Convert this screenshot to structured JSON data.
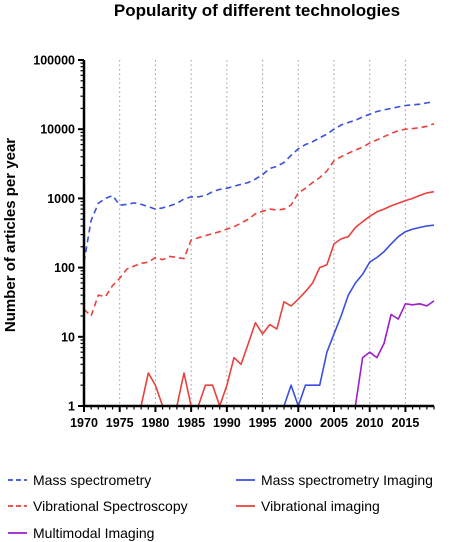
{
  "chart_data": {
    "type": "line",
    "title": "Popularity of different technologies",
    "xlabel": "",
    "ylabel": "Number of articles per year",
    "yscale": "log",
    "xlim": [
      1970,
      2019
    ],
    "ylim": [
      1,
      100000
    ],
    "x_ticks": [
      1970,
      1975,
      1980,
      1985,
      1990,
      1995,
      2000,
      2005,
      2010,
      2015
    ],
    "x_tick_labels": [
      "1970",
      "1975",
      "1980",
      "1985",
      "1990",
      "1995",
      "2000",
      "2005",
      "2010",
      "2015"
    ],
    "y_ticks": [
      1,
      10,
      100,
      1000,
      10000,
      100000
    ],
    "y_tick_labels": [
      "1",
      "10",
      "100",
      "1000",
      "10000",
      "100000"
    ],
    "grid": "vertical dotted",
    "legend_position": "bottom",
    "series": [
      {
        "name": "Mass spectrometry",
        "color": "#3b4fe0",
        "dash": "dashed",
        "points": [
          [
            1970,
            120
          ],
          [
            1971,
            480
          ],
          [
            1972,
            850
          ],
          [
            1973,
            1000
          ],
          [
            1974,
            1100
          ],
          [
            1975,
            800
          ],
          [
            1976,
            820
          ],
          [
            1977,
            860
          ],
          [
            1978,
            820
          ],
          [
            1979,
            760
          ],
          [
            1980,
            700
          ],
          [
            1981,
            730
          ],
          [
            1982,
            780
          ],
          [
            1983,
            850
          ],
          [
            1984,
            980
          ],
          [
            1985,
            1050
          ],
          [
            1986,
            1050
          ],
          [
            1987,
            1100
          ],
          [
            1988,
            1250
          ],
          [
            1989,
            1350
          ],
          [
            1990,
            1400
          ],
          [
            1991,
            1500
          ],
          [
            1992,
            1600
          ],
          [
            1993,
            1700
          ],
          [
            1994,
            1900
          ],
          [
            1995,
            2200
          ],
          [
            1996,
            2700
          ],
          [
            1997,
            2900
          ],
          [
            1998,
            3300
          ],
          [
            1999,
            4200
          ],
          [
            2000,
            5200
          ],
          [
            2001,
            6000
          ],
          [
            2002,
            6600
          ],
          [
            2003,
            7500
          ],
          [
            2004,
            8500
          ],
          [
            2005,
            10000
          ],
          [
            2006,
            11500
          ],
          [
            2007,
            12500
          ],
          [
            2008,
            13500
          ],
          [
            2009,
            15000
          ],
          [
            2010,
            16500
          ],
          [
            2011,
            18000
          ],
          [
            2012,
            19000
          ],
          [
            2013,
            20000
          ],
          [
            2014,
            21000
          ],
          [
            2015,
            22000
          ],
          [
            2016,
            22500
          ],
          [
            2017,
            23000
          ],
          [
            2018,
            24000
          ],
          [
            2019,
            25000
          ]
        ]
      },
      {
        "name": "Vibrational Spectroscopy",
        "color": "#e8413c",
        "dash": "dashed",
        "points": [
          [
            1970,
            25
          ],
          [
            1971,
            20
          ],
          [
            1972,
            40
          ],
          [
            1973,
            38
          ],
          [
            1974,
            55
          ],
          [
            1975,
            70
          ],
          [
            1976,
            95
          ],
          [
            1977,
            105
          ],
          [
            1978,
            115
          ],
          [
            1979,
            120
          ],
          [
            1980,
            140
          ],
          [
            1981,
            130
          ],
          [
            1982,
            145
          ],
          [
            1983,
            140
          ],
          [
            1984,
            135
          ],
          [
            1985,
            250
          ],
          [
            1986,
            270
          ],
          [
            1987,
            290
          ],
          [
            1988,
            310
          ],
          [
            1989,
            330
          ],
          [
            1990,
            360
          ],
          [
            1991,
            390
          ],
          [
            1992,
            440
          ],
          [
            1993,
            500
          ],
          [
            1994,
            600
          ],
          [
            1995,
            650
          ],
          [
            1996,
            700
          ],
          [
            1997,
            680
          ],
          [
            1998,
            700
          ],
          [
            1999,
            800
          ],
          [
            2000,
            1200
          ],
          [
            2001,
            1400
          ],
          [
            2002,
            1700
          ],
          [
            2003,
            2000
          ],
          [
            2004,
            2500
          ],
          [
            2005,
            3500
          ],
          [
            2006,
            4000
          ],
          [
            2007,
            4500
          ],
          [
            2008,
            5000
          ],
          [
            2009,
            5500
          ],
          [
            2010,
            6300
          ],
          [
            2011,
            7000
          ],
          [
            2012,
            7800
          ],
          [
            2013,
            8700
          ],
          [
            2014,
            9500
          ],
          [
            2015,
            10000
          ],
          [
            2016,
            10200
          ],
          [
            2017,
            10500
          ],
          [
            2018,
            11000
          ],
          [
            2019,
            12000
          ]
        ]
      },
      {
        "name": "Multimodal Imaging",
        "color": "#9a1fc9",
        "dash": "solid",
        "points": [
          [
            2008,
            1
          ],
          [
            2009,
            5
          ],
          [
            2010,
            6
          ],
          [
            2011,
            5
          ],
          [
            2012,
            8
          ],
          [
            2013,
            21
          ],
          [
            2014,
            18
          ],
          [
            2015,
            30
          ],
          [
            2016,
            29
          ],
          [
            2017,
            30
          ],
          [
            2018,
            28
          ],
          [
            2019,
            33
          ]
        ]
      },
      {
        "name": "Mass spectrometry Imaging",
        "color": "#3b4fe0",
        "dash": "solid",
        "points": [
          [
            1995,
            1
          ],
          [
            1996,
            1
          ],
          [
            1997,
            1
          ],
          [
            1998,
            1
          ],
          [
            1999,
            2
          ],
          [
            2000,
            1
          ],
          [
            2001,
            2
          ],
          [
            2002,
            2
          ],
          [
            2003,
            2
          ],
          [
            2004,
            6
          ],
          [
            2005,
            11
          ],
          [
            2006,
            20
          ],
          [
            2007,
            40
          ],
          [
            2008,
            60
          ],
          [
            2009,
            80
          ],
          [
            2010,
            120
          ],
          [
            2011,
            140
          ],
          [
            2012,
            170
          ],
          [
            2013,
            220
          ],
          [
            2014,
            280
          ],
          [
            2015,
            330
          ],
          [
            2016,
            360
          ],
          [
            2017,
            380
          ],
          [
            2018,
            400
          ],
          [
            2019,
            410
          ]
        ]
      },
      {
        "name": "Vibrational imaging",
        "color": "#e8413c",
        "dash": "solid",
        "points": [
          [
            1978,
            1
          ],
          [
            1979,
            3
          ],
          [
            1980,
            2
          ],
          [
            1981,
            1
          ],
          [
            1982,
            1
          ],
          [
            1983,
            1
          ],
          [
            1984,
            3
          ],
          [
            1985,
            1
          ],
          [
            1986,
            1
          ],
          [
            1987,
            2
          ],
          [
            1988,
            2
          ],
          [
            1989,
            1
          ],
          [
            1990,
            2
          ],
          [
            1991,
            5
          ],
          [
            1992,
            4
          ],
          [
            1993,
            8
          ],
          [
            1994,
            16
          ],
          [
            1995,
            11
          ],
          [
            1996,
            15
          ],
          [
            1997,
            13
          ],
          [
            1998,
            32
          ],
          [
            1999,
            28
          ],
          [
            2000,
            35
          ],
          [
            2001,
            45
          ],
          [
            2002,
            60
          ],
          [
            2003,
            100
          ],
          [
            2004,
            110
          ],
          [
            2005,
            220
          ],
          [
            2006,
            260
          ],
          [
            2007,
            280
          ],
          [
            2008,
            380
          ],
          [
            2009,
            460
          ],
          [
            2010,
            550
          ],
          [
            2011,
            640
          ],
          [
            2012,
            700
          ],
          [
            2013,
            780
          ],
          [
            2014,
            850
          ],
          [
            2015,
            930
          ],
          [
            2016,
            1000
          ],
          [
            2017,
            1100
          ],
          [
            2018,
            1200
          ],
          [
            2019,
            1250
          ]
        ]
      }
    ],
    "legend_order": [
      "Mass spectrometry",
      "Mass spectrometry Imaging",
      "Vibrational Spectroscopy",
      "Vibrational imaging",
      "Multimodal Imaging"
    ]
  }
}
